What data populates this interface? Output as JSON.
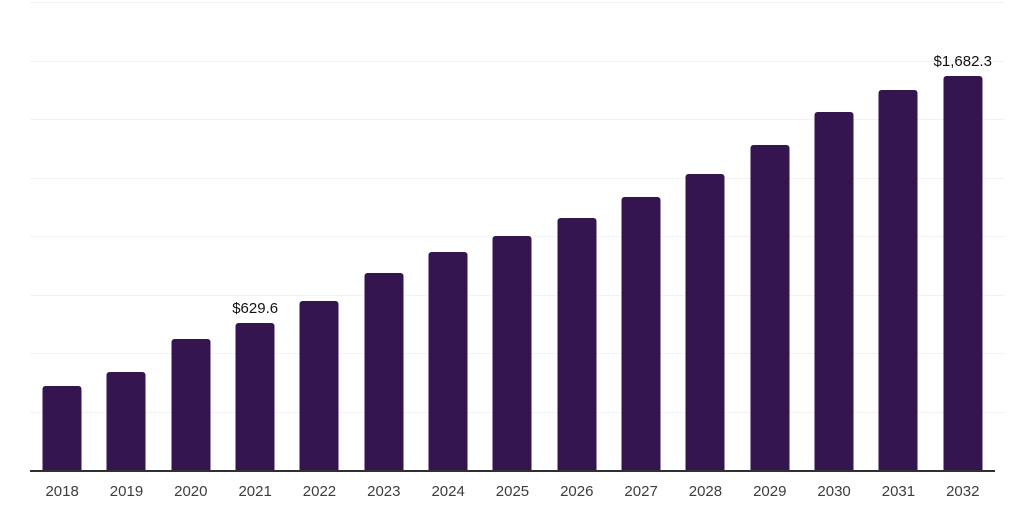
{
  "page": {
    "background": "#ffffff"
  },
  "chart_data": {
    "type": "bar",
    "title": "",
    "xlabel": "",
    "ylabel": "",
    "categories": [
      "2018",
      "2019",
      "2020",
      "2021",
      "2022",
      "2023",
      "2024",
      "2025",
      "2026",
      "2027",
      "2028",
      "2029",
      "2030",
      "2031",
      "2032"
    ],
    "values": [
      359.0,
      419.0,
      559.4,
      629.6,
      721.1,
      840.2,
      933.8,
      1001.8,
      1078.4,
      1165.6,
      1265.6,
      1388.9,
      1529.3,
      1625.0,
      1682.3
    ],
    "data_labels": [
      {
        "category": "2021",
        "text": "$629.6"
      },
      {
        "category": "2032",
        "text": "$1,682.3"
      }
    ],
    "ylim": [
      0,
      2000
    ],
    "gridline_step": 250,
    "grid": true,
    "legend": false,
    "bar_color": "#351550",
    "axis_line_color": "#303030",
    "gridline_color": "#f2f2f4",
    "tick_label_color": "#3d3d3d",
    "value_label_color": "#111111"
  }
}
